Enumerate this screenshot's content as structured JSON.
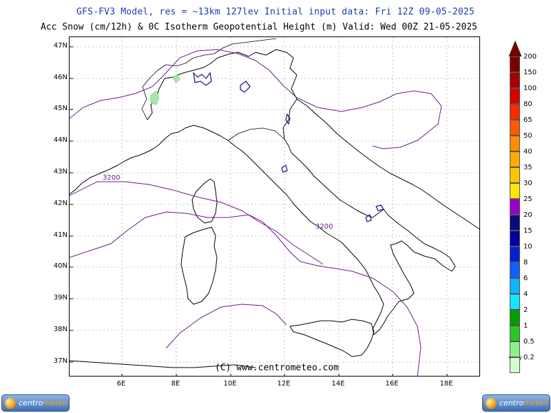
{
  "title_line1": "GFS-FV3 Model, res = ~13km 127lev   Initial input data: Fri 12Z 09-05-2025",
  "title_line2": "Acc Snow (cm/12h) & 0C Isotherm Geopotential Height (m)  Valid: Wed 00Z 21-05-2025",
  "copyright": "(C) www.centrometeo.com",
  "lat_labels": [
    "47N",
    "46N",
    "45N",
    "44N",
    "43N",
    "42N",
    "41N",
    "40N",
    "39N",
    "38N",
    "37N"
  ],
  "lon_labels": [
    "6E",
    "8E",
    "10E",
    "12E",
    "14E",
    "16E",
    "18E"
  ],
  "contour_labels": [
    "3200",
    "3200"
  ],
  "colorbar": {
    "labels": [
      "200",
      "150",
      "100",
      "80",
      "65",
      "50",
      "40",
      "35",
      "30",
      "25",
      "20",
      "15",
      "10",
      "8",
      "6",
      "4",
      "2",
      "1",
      "0.5",
      "0.2"
    ],
    "colors": [
      "#7a0000",
      "#a80000",
      "#d40000",
      "#ff2a00",
      "#ff5a00",
      "#ff8c00",
      "#ffab00",
      "#ffc600",
      "#ffe600",
      "#9900c8",
      "#0a0a78",
      "#0000a0",
      "#0022d2",
      "#1060ff",
      "#10b4ff",
      "#14e6ff",
      "#00a000",
      "#28c828",
      "#8cf08c",
      "#d2ffd2"
    ],
    "arrow_color": "#7a0000"
  },
  "logo": {
    "text_main": "centro",
    "text_accent": "meteo"
  }
}
